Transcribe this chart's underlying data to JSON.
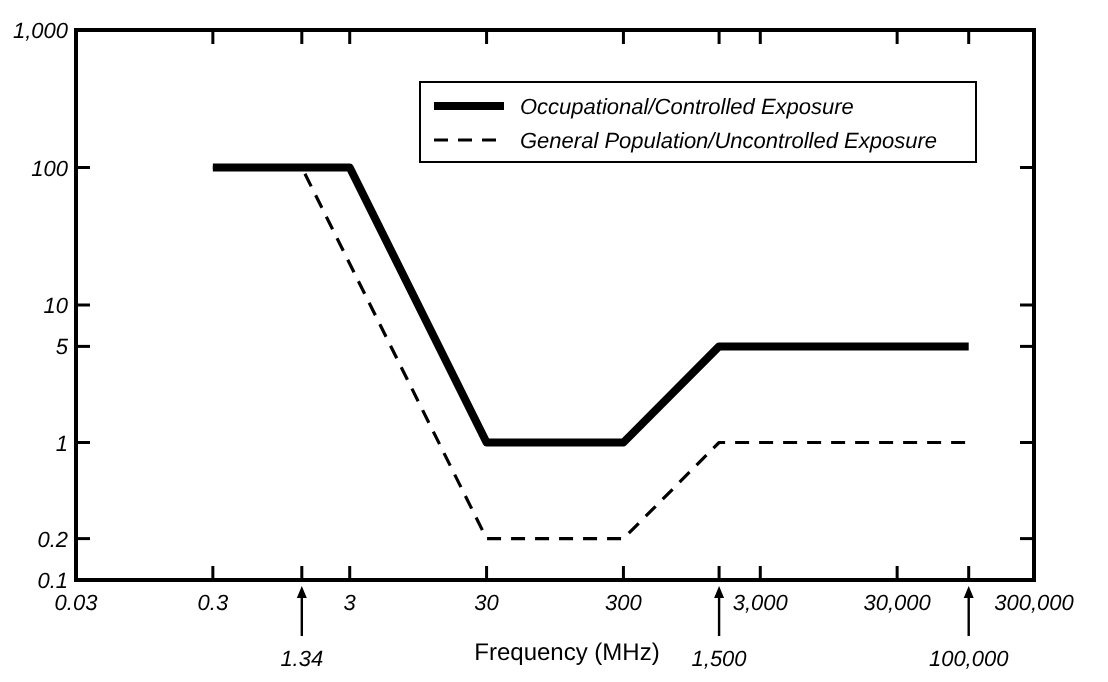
{
  "chart_data": {
    "type": "line",
    "xlabel": "Frequency (MHz)",
    "log": "xy",
    "grid": false,
    "legend": "top right",
    "xlim": [
      0.03,
      300000
    ],
    "ylim": [
      0.1,
      1000
    ],
    "xticks": [
      {
        "value": 0.03,
        "label": "0.03"
      },
      0.3,
      3,
      30,
      300,
      {
        "value": 3000,
        "label": "3,000"
      },
      {
        "value": 30000,
        "label": "30,000"
      },
      {
        "value": 300000,
        "label": "300,000"
      },
      {
        "value": 1.34,
        "label": null
      },
      {
        "value": 1500,
        "label": null
      },
      {
        "value": 100000,
        "label": null
      }
    ],
    "yticks": [
      0.1,
      0.2,
      1,
      5,
      10,
      100,
      {
        "value": 1000,
        "label": "1,000"
      }
    ],
    "series": [
      {
        "name": "Occupational/Controlled Exposure",
        "color": "#000000",
        "line_style": "solid",
        "x": [
          0.3,
          3,
          30,
          300,
          1500,
          100000
        ],
        "values": [
          100,
          100,
          1,
          1,
          5,
          5
        ]
      },
      {
        "name": "General Population/Uncontrolled Exposure",
        "color": "#000000",
        "line_style": "dashed",
        "x": [
          0.3,
          1.34,
          30,
          300,
          1500,
          100000
        ],
        "values": [
          100,
          100,
          0.2,
          0.2,
          1,
          1
        ]
      }
    ],
    "annotations": [
      "1.34",
      "1,500",
      "100,000"
    ]
  }
}
